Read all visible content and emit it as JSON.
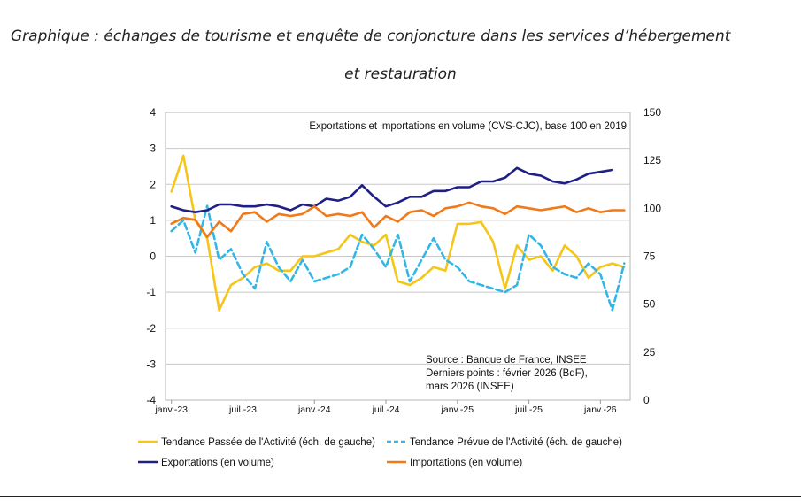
{
  "title_line1": "Graphique : échanges de tourisme et enquête de conjoncture dans les services d’hébergement",
  "title_line2": "et restauration",
  "chart_data": {
    "type": "line",
    "inner_title": "Exportations et importations en volume (CVS-CJO), base 100 en 2019",
    "source_lines": [
      "Source : Banque de France, INSEE",
      "Derniers points : février 2026 (BdF),",
      "mars 2026 (INSEE)"
    ],
    "x_ticks": [
      {
        "i": 0,
        "label": "janv.-23"
      },
      {
        "i": 6,
        "label": "juil.-23"
      },
      {
        "i": 12,
        "label": "janv.-24"
      },
      {
        "i": 18,
        "label": "juil.-24"
      },
      {
        "i": 24,
        "label": "janv.-25"
      },
      {
        "i": 30,
        "label": "juil.-25"
      },
      {
        "i": 36,
        "label": "janv.-26"
      }
    ],
    "n_months": 39,
    "y_left": {
      "min": -4,
      "max": 4,
      "ticks": [
        "-4",
        "-3",
        "-2",
        "-1",
        "0",
        "1",
        "2",
        "3",
        "4"
      ]
    },
    "y_right": {
      "min": 0,
      "max": 150,
      "ticks": [
        "0",
        "25",
        "50",
        "75",
        "100",
        "125",
        "150"
      ]
    },
    "series": [
      {
        "name": "Tendance Passée de l'Activité (éch. de gauche)",
        "axis": "left",
        "color": "#f5c518",
        "dash": false,
        "values": [
          1.8,
          2.8,
          1.0,
          0.5,
          -1.5,
          -0.8,
          -0.6,
          -0.3,
          -0.2,
          -0.4,
          -0.4,
          0.0,
          0.0,
          0.1,
          0.2,
          0.6,
          0.4,
          0.3,
          0.6,
          -0.7,
          -0.8,
          -0.6,
          -0.3,
          -0.4,
          0.9,
          0.9,
          0.95,
          0.4,
          -0.9,
          0.3,
          -0.1,
          0.0,
          -0.4,
          0.3,
          0.0,
          -0.6,
          -0.3,
          -0.2,
          -0.3
        ]
      },
      {
        "name": "Tendance Prévue de l'Activité (éch. de gauche)",
        "axis": "left",
        "color": "#33b6e6",
        "dash": true,
        "values": [
          0.7,
          1.0,
          0.1,
          1.4,
          -0.1,
          0.2,
          -0.5,
          -0.9,
          0.4,
          -0.3,
          -0.7,
          -0.1,
          -0.7,
          -0.6,
          -0.5,
          -0.3,
          0.6,
          0.2,
          -0.3,
          0.6,
          -0.7,
          -0.1,
          0.5,
          -0.1,
          -0.3,
          -0.7,
          -0.8,
          -0.9,
          -1.0,
          -0.8,
          0.6,
          0.3,
          -0.3,
          -0.5,
          -0.6,
          -0.2,
          -0.5,
          -1.5,
          -0.2
        ]
      },
      {
        "name": "Exportations (en volume)",
        "axis": "right",
        "color": "#1f1f86",
        "dash": false,
        "values": [
          101,
          99,
          98,
          99,
          102,
          102,
          101,
          101,
          102,
          101,
          99,
          102,
          101,
          105,
          104,
          106,
          112,
          106,
          101,
          103,
          106,
          106,
          109,
          109,
          111,
          111,
          114,
          114,
          116,
          121,
          118,
          117,
          114,
          113,
          115,
          118,
          119,
          120
        ]
      },
      {
        "name": "Importations (en volume)",
        "axis": "right",
        "color": "#f07a1a",
        "dash": false,
        "values": [
          92,
          95,
          94,
          85,
          93,
          88,
          97,
          98,
          93,
          97,
          96,
          97,
          101,
          96,
          97,
          96,
          98,
          90,
          96,
          93,
          98,
          99,
          96,
          100,
          101,
          103,
          101,
          100,
          97,
          101,
          100,
          99,
          100,
          101,
          98,
          100,
          98,
          99,
          99
        ]
      }
    ],
    "legend": [
      {
        "label": "Tendance Passée de l'Activité (éch. de gauche)",
        "color": "#f5c518",
        "dash": false
      },
      {
        "label": "Tendance Prévue de l'Activité (éch. de gauche)",
        "color": "#33b6e6",
        "dash": true
      },
      {
        "label": "Exportations (en volume)",
        "color": "#1f1f86",
        "dash": false
      },
      {
        "label": "Importations (en volume)",
        "color": "#f07a1a",
        "dash": false
      }
    ]
  }
}
